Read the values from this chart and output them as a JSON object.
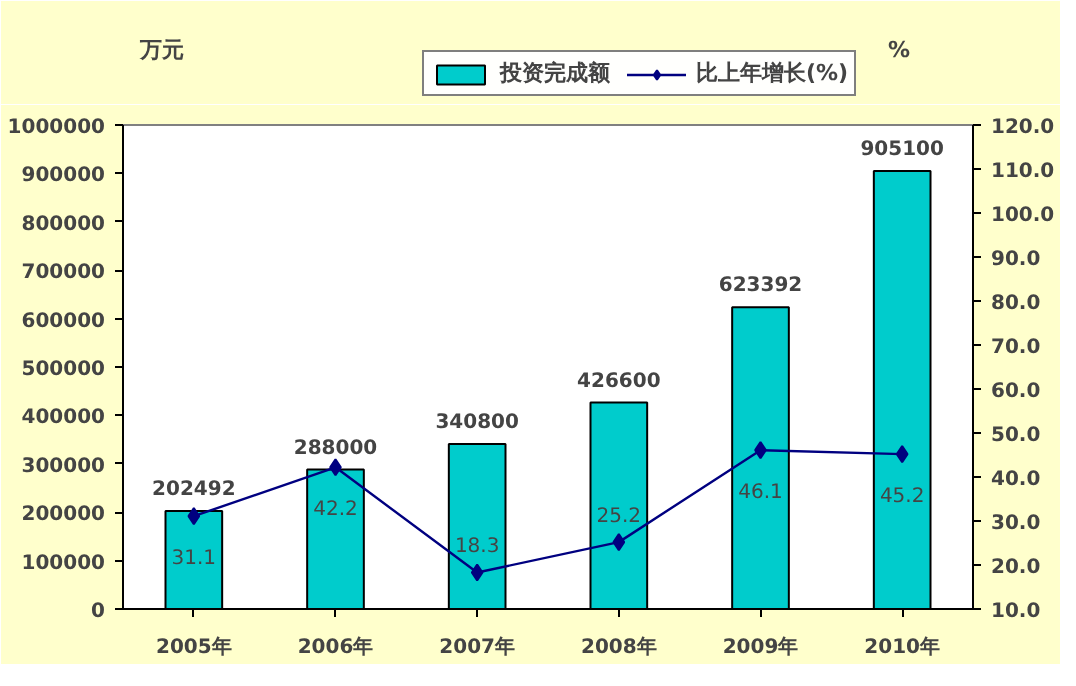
{
  "chart_data": {
    "type": "bar",
    "ylabel": "万元",
    "y2label": "%",
    "categories": [
      "2005年",
      "2006年",
      "2007年",
      "2008年",
      "2009年",
      "2010年"
    ],
    "series": [
      {
        "name": "投资完成额",
        "color": "#00cccc",
        "values": [
          202492,
          288000,
          340800,
          426600,
          623392,
          905100
        ]
      },
      {
        "name": "比上年增长(%)",
        "type": "line",
        "axis": "y2",
        "color": "#000080",
        "marker": "diamond",
        "values": [
          31.1,
          42.2,
          18.3,
          25.2,
          46.1,
          45.2
        ]
      }
    ],
    "data_labels": true,
    "ylim": [
      0,
      1000000
    ],
    "yticks": [
      0,
      100000,
      200000,
      300000,
      400000,
      500000,
      600000,
      700000,
      800000,
      900000,
      1000000
    ],
    "y2lim": [
      10,
      120
    ],
    "y2ticks": [
      {
        "value": 10,
        "label": "10.0"
      },
      {
        "value": 20,
        "label": "20.0"
      },
      {
        "value": 30,
        "label": "30.0"
      },
      {
        "value": 40,
        "label": "40.0"
      },
      {
        "value": 50,
        "label": "50.0"
      },
      {
        "value": 60,
        "label": "60.0"
      },
      {
        "value": 70,
        "label": "70.0"
      },
      {
        "value": 80,
        "label": "80.0"
      },
      {
        "value": 90,
        "label": "90.0"
      },
      {
        "value": 100,
        "label": "100.0"
      },
      {
        "value": 110,
        "label": "110.0"
      },
      {
        "value": 120,
        "label": "120.0"
      }
    ],
    "grid": false,
    "legend": "top"
  }
}
